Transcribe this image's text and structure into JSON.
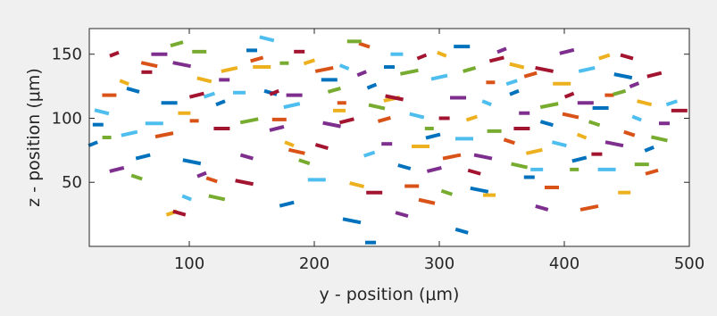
{
  "chart_data": {
    "type": "scatter",
    "title": "",
    "xlabel": "y - position (μm)",
    "ylabel": "z - position (μm)",
    "xlim": [
      20,
      500
    ],
    "ylim": [
      0,
      170
    ],
    "xticks": [
      "100",
      "200",
      "300",
      "400",
      "500"
    ],
    "xtick_values": [
      100,
      200,
      300,
      400,
      500
    ],
    "yticks": [
      "50",
      "100",
      "150"
    ],
    "ytick_values": [
      50,
      100,
      150
    ],
    "grid": false,
    "legend": "none",
    "marker": "short horizontal dash",
    "palette": [
      "#0072bd",
      "#d95319",
      "#edb120",
      "#7e2f8e",
      "#77ac30",
      "#4dbeee",
      "#a2142f"
    ],
    "series": [
      {
        "color": "#0072bd",
        "points": [
          [
            23,
            80
          ],
          [
            27,
            95
          ],
          [
            55,
            122
          ],
          [
            63,
            70
          ],
          [
            84,
            112
          ],
          [
            102,
            66
          ],
          [
            125,
            112
          ],
          [
            150,
            153
          ],
          [
            165,
            120
          ],
          [
            178,
            33
          ],
          [
            212,
            130
          ],
          [
            230,
            20
          ],
          [
            246,
            125
          ],
          [
            260,
            140
          ],
          [
            272,
            62
          ],
          [
            295,
            86
          ],
          [
            318,
            156
          ],
          [
            332,
            44
          ],
          [
            360,
            120
          ],
          [
            372,
            54
          ],
          [
            386,
            96
          ],
          [
            412,
            68
          ],
          [
            429,
            108
          ],
          [
            447,
            133
          ],
          [
            468,
            76
          ],
          [
            245,
            3
          ],
          [
            318,
            12
          ]
        ]
      },
      {
        "color": "#d95319",
        "points": [
          [
            36,
            118
          ],
          [
            68,
            142
          ],
          [
            80,
            87
          ],
          [
            104,
            98
          ],
          [
            118,
            52
          ],
          [
            154,
            146
          ],
          [
            172,
            99
          ],
          [
            186,
            74
          ],
          [
            208,
            138
          ],
          [
            222,
            112
          ],
          [
            240,
            157
          ],
          [
            256,
            99
          ],
          [
            278,
            47
          ],
          [
            290,
            35
          ],
          [
            310,
            70
          ],
          [
            341,
            128
          ],
          [
            356,
            82
          ],
          [
            373,
            134
          ],
          [
            390,
            46
          ],
          [
            405,
            102
          ],
          [
            420,
            30
          ],
          [
            436,
            118
          ],
          [
            452,
            88
          ],
          [
            470,
            58
          ]
        ]
      },
      {
        "color": "#edb120",
        "points": [
          [
            48,
            128
          ],
          [
            86,
            26
          ],
          [
            96,
            104
          ],
          [
            112,
            130
          ],
          [
            132,
            138
          ],
          [
            158,
            140
          ],
          [
            180,
            80
          ],
          [
            196,
            144
          ],
          [
            220,
            106
          ],
          [
            234,
            48
          ],
          [
            262,
            115
          ],
          [
            285,
            78
          ],
          [
            302,
            150
          ],
          [
            326,
            100
          ],
          [
            340,
            40
          ],
          [
            362,
            141
          ],
          [
            376,
            74
          ],
          [
            398,
            127
          ],
          [
            414,
            86
          ],
          [
            432,
            148
          ],
          [
            448,
            42
          ],
          [
            464,
            112
          ]
        ]
      },
      {
        "color": "#7e2f8e",
        "points": [
          [
            42,
            60
          ],
          [
            76,
            150
          ],
          [
            94,
            142
          ],
          [
            110,
            56
          ],
          [
            128,
            130
          ],
          [
            146,
            70
          ],
          [
            170,
            92
          ],
          [
            184,
            118
          ],
          [
            214,
            95
          ],
          [
            238,
            135
          ],
          [
            258,
            80
          ],
          [
            270,
            25
          ],
          [
            296,
            60
          ],
          [
            315,
            116
          ],
          [
            335,
            70
          ],
          [
            350,
            153
          ],
          [
            368,
            104
          ],
          [
            382,
            30
          ],
          [
            402,
            152
          ],
          [
            417,
            112
          ],
          [
            440,
            80
          ],
          [
            456,
            126
          ],
          [
            480,
            96
          ]
        ]
      },
      {
        "color": "#77ac30",
        "points": [
          [
            34,
            85
          ],
          [
            58,
            54
          ],
          [
            90,
            158
          ],
          [
            108,
            152
          ],
          [
            122,
            38
          ],
          [
            148,
            98
          ],
          [
            176,
            143
          ],
          [
            192,
            66
          ],
          [
            216,
            122
          ],
          [
            232,
            160
          ],
          [
            250,
            109
          ],
          [
            276,
            136
          ],
          [
            292,
            92
          ],
          [
            306,
            42
          ],
          [
            324,
            138
          ],
          [
            344,
            90
          ],
          [
            364,
            63
          ],
          [
            388,
            110
          ],
          [
            408,
            60
          ],
          [
            424,
            96
          ],
          [
            444,
            120
          ],
          [
            462,
            64
          ],
          [
            476,
            84
          ]
        ]
      },
      {
        "color": "#4dbeee",
        "points": [
          [
            30,
            105
          ],
          [
            52,
            88
          ],
          [
            72,
            96
          ],
          [
            98,
            38
          ],
          [
            116,
            118
          ],
          [
            140,
            120
          ],
          [
            162,
            162
          ],
          [
            182,
            110
          ],
          [
            202,
            52
          ],
          [
            224,
            140
          ],
          [
            244,
            72
          ],
          [
            266,
            150
          ],
          [
            282,
            102
          ],
          [
            300,
            132
          ],
          [
            320,
            84
          ],
          [
            338,
            112
          ],
          [
            358,
            128
          ],
          [
            378,
            60
          ],
          [
            396,
            80
          ],
          [
            418,
            138
          ],
          [
            434,
            60
          ],
          [
            458,
            100
          ],
          [
            486,
            112
          ]
        ]
      },
      {
        "color": "#a2142f",
        "points": [
          [
            40,
            150
          ],
          [
            66,
            136
          ],
          [
            92,
            26
          ],
          [
            106,
            118
          ],
          [
            126,
            92
          ],
          [
            144,
            50
          ],
          [
            168,
            120
          ],
          [
            188,
            152
          ],
          [
            206,
            78
          ],
          [
            226,
            98
          ],
          [
            248,
            42
          ],
          [
            264,
            116
          ],
          [
            286,
            148
          ],
          [
            304,
            100
          ],
          [
            328,
            58
          ],
          [
            346,
            146
          ],
          [
            366,
            92
          ],
          [
            384,
            138
          ],
          [
            404,
            118
          ],
          [
            426,
            72
          ],
          [
            450,
            148
          ],
          [
            472,
            134
          ],
          [
            492,
            106
          ]
        ]
      }
    ]
  }
}
